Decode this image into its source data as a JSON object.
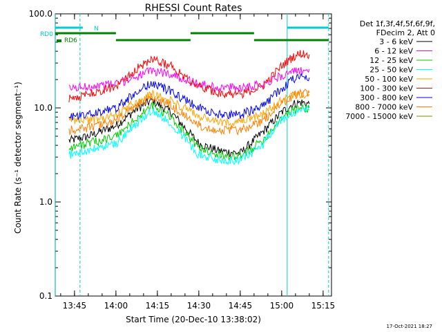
{
  "chart_data": {
    "type": "line",
    "title": "RHESSI Count Rates",
    "xlabel": "Start Time (20-Dec-10 13:38:02)",
    "ylabel": "Count Rate (s⁻¹ detector segment⁻¹)",
    "yscale": "log",
    "ylim": [
      0.1,
      100.0
    ],
    "xlim": [
      "13:38:02",
      "15:18:02"
    ],
    "x_tick_labels": [
      "13:45",
      "14:00",
      "14:15",
      "14:30",
      "14:45",
      "15:00",
      "15:15"
    ],
    "y_tick_labels": [
      "0.1",
      "1.0",
      "10.0",
      "100.0"
    ],
    "legend_title": [
      "Det 1f,3f,4f,5f,6f,9f,",
      "FDecim 2, Att 0"
    ],
    "legend_placement": "right",
    "x_time_points": [
      "13:43",
      "13:50",
      "14:00",
      "14:08",
      "14:13",
      "14:20",
      "14:30",
      "14:37",
      "14:45",
      "14:53",
      "15:00",
      "15:04",
      "15:07",
      "15:10"
    ],
    "series": [
      {
        "name": "3 - 6 keV",
        "color": "#000000",
        "values": [
          4.5,
          5,
          6.5,
          10,
          12,
          9,
          4.2,
          3.5,
          3.3,
          5.5,
          9,
          11,
          11.5,
          11
        ]
      },
      {
        "name": "6 - 12 keV",
        "color": "#ff00ff",
        "values": [
          16,
          17,
          18,
          22,
          25,
          23,
          18,
          16.5,
          16.5,
          18,
          22,
          24,
          25,
          26
        ]
      },
      {
        "name": "12 - 25 keV",
        "color": "#00cc00",
        "values": [
          3.8,
          4.2,
          5,
          8,
          10.5,
          8,
          3.8,
          3.2,
          3,
          4.5,
          8,
          9.5,
          10,
          10
        ]
      },
      {
        "name": "25 - 50 keV",
        "color": "#00ffff",
        "values": [
          3.2,
          3.5,
          4.2,
          7,
          9.5,
          7,
          3.2,
          2.8,
          2.8,
          4,
          7.5,
          9,
          9.5,
          9.5
        ]
      },
      {
        "name": "50 - 100 keV",
        "color": "#ffa500",
        "values": [
          7.5,
          7.5,
          8.5,
          12,
          14,
          12,
          8.2,
          7,
          7,
          8.5,
          12,
          13.5,
          14,
          14
        ]
      },
      {
        "name": "100 - 300 keV",
        "color": "#ff0000",
        "values": [
          12.5,
          14,
          17,
          27,
          33,
          28,
          17,
          14.5,
          14,
          17,
          28,
          35,
          38,
          37
        ]
      },
      {
        "name": "300 - 800 keV",
        "color": "#0000ff",
        "values": [
          8,
          8.5,
          10,
          15,
          18.5,
          15,
          10,
          8.5,
          8.5,
          10.5,
          16,
          20,
          21,
          21
        ]
      },
      {
        "name": "800 - 7000 keV",
        "color": "#ff7f00",
        "values": [
          5.8,
          6.2,
          7.3,
          11,
          13,
          10.5,
          6.6,
          5.8,
          5.8,
          7.2,
          11,
          13.5,
          14.5,
          14.5
        ]
      },
      {
        "name": "7000 - 15000 keV",
        "color": "#669900",
        "values": [
          null,
          null,
          null,
          null,
          null,
          null,
          null,
          null,
          null,
          null,
          null,
          null,
          null,
          null
        ]
      }
    ],
    "annotations": {
      "att_state_labels": [
        "RD0",
        "RD6",
        "N"
      ],
      "att_colors": {
        "rd0": "#00cccc",
        "rd6": "#008000",
        "n": "#00cccc"
      },
      "rd6_segments": [
        [
          "13:38",
          "14:00"
        ],
        [
          "14:00",
          "14:27"
        ],
        [
          "14:27",
          "14:50"
        ],
        [
          "14:50",
          "15:17"
        ]
      ],
      "rd0_segments": [
        [
          "13:38",
          "13:48"
        ],
        [
          "15:02",
          "15:17"
        ]
      ],
      "vertical_lines": [
        "13:38",
        "13:47",
        "15:02",
        "15:17"
      ]
    },
    "grid": false
  },
  "footer": {
    "timestamp": "17-Oct-2021 18:27"
  }
}
